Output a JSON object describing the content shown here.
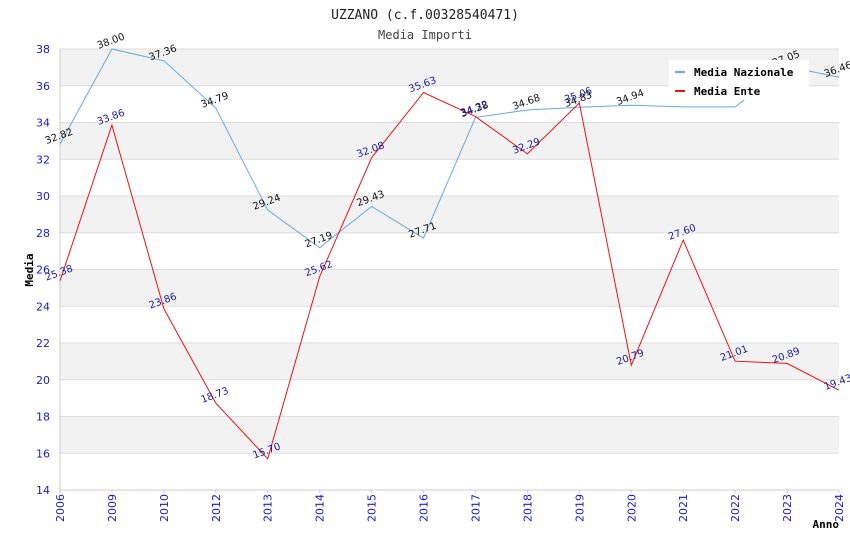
{
  "chart_data": {
    "type": "line",
    "title": "UZZANO (c.f.00328540471)",
    "subtitle": "Media Importi",
    "xlabel": "Anno",
    "ylabel": "Media",
    "ylim": [
      14,
      38
    ],
    "yticks": [
      "14",
      "16",
      "18",
      "20",
      "22",
      "24",
      "26",
      "28",
      "30",
      "32",
      "34",
      "36",
      "38"
    ],
    "categories": [
      "2006",
      "2009",
      "2010",
      "2012",
      "2013",
      "2014",
      "2015",
      "2016",
      "2017",
      "2018",
      "2019",
      "2020",
      "2021",
      "2022",
      "2023",
      "2024"
    ],
    "grid": true,
    "legend_position": "top-right",
    "series": [
      {
        "name": "Media Nazionale",
        "color": "#66aadd",
        "values": [
          32.82,
          38.0,
          37.36,
          34.79,
          29.24,
          27.19,
          29.43,
          27.71,
          34.28,
          34.68,
          34.83,
          34.94,
          34.85,
          34.85,
          37.05,
          36.46
        ],
        "labels": [
          "32.82",
          "38.00",
          "37.36",
          "34.79",
          "29.24",
          "27.19",
          "29.43",
          "27.71",
          "34.28",
          "34.68",
          "34.83",
          "34.94",
          "",
          "",
          "37.05",
          "36.46"
        ]
      },
      {
        "name": "Media Ente",
        "color": "#ee1111",
        "values": [
          25.38,
          33.86,
          23.86,
          18.73,
          15.7,
          25.62,
          32.08,
          35.63,
          34.32,
          32.29,
          35.06,
          20.79,
          27.6,
          21.01,
          20.89,
          19.43
        ],
        "labels": [
          "25.38",
          "33.86",
          "23.86",
          "18.73",
          "15.70",
          "25.62",
          "32.08",
          "35.63",
          "34.32",
          "32.29",
          "35.06",
          "20.79",
          "27.60",
          "21.01",
          "20.89",
          "19.43"
        ]
      }
    ]
  }
}
